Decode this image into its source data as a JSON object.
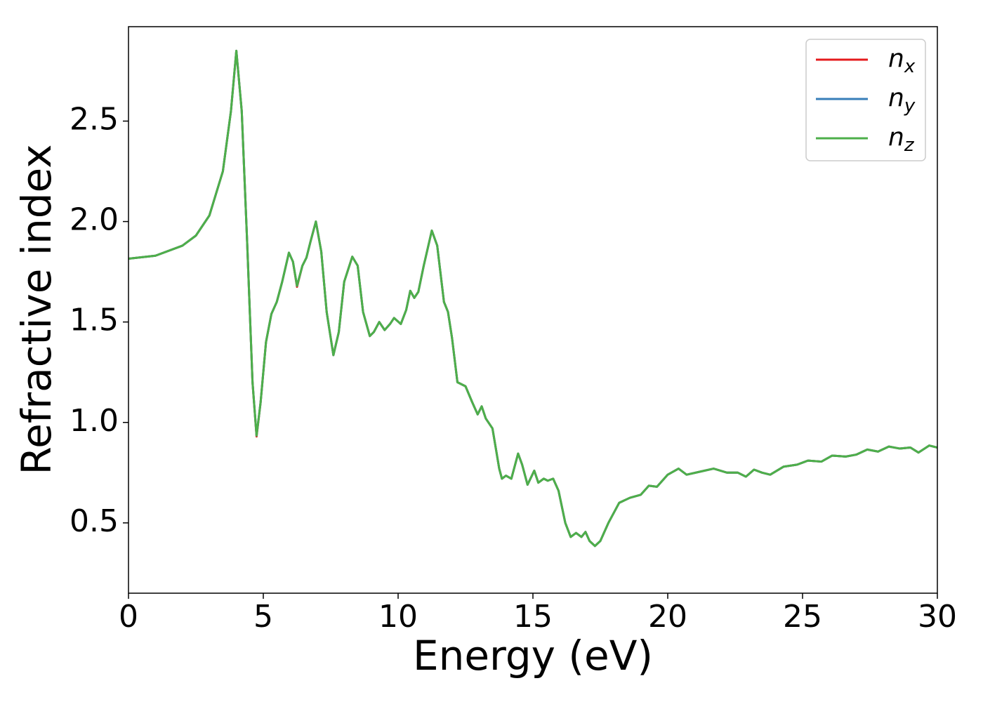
{
  "chart_data": {
    "type": "line",
    "xlabel": "Energy (eV)",
    "ylabel": "Refractive index",
    "x": [
      0,
      1,
      2,
      2.5,
      3,
      3.5,
      3.8,
      4.0,
      4.2,
      4.4,
      4.6,
      4.75,
      4.9,
      5.1,
      5.3,
      5.5,
      5.7,
      5.95,
      6.1,
      6.25,
      6.45,
      6.6,
      6.75,
      6.95,
      7.15,
      7.35,
      7.6,
      7.8,
      8.0,
      8.3,
      8.5,
      8.7,
      8.95,
      9.1,
      9.3,
      9.5,
      9.7,
      9.85,
      10.1,
      10.3,
      10.45,
      10.6,
      10.75,
      10.95,
      11.25,
      11.45,
      11.7,
      11.85,
      12.0,
      12.2,
      12.5,
      12.75,
      12.95,
      13.1,
      13.25,
      13.5,
      13.75,
      13.85,
      14.0,
      14.2,
      14.45,
      14.6,
      14.8,
      15.05,
      15.2,
      15.4,
      15.55,
      15.75,
      15.95,
      16.2,
      16.4,
      16.6,
      16.8,
      16.95,
      17.1,
      17.3,
      17.5,
      17.8,
      18.2,
      18.6,
      19.0,
      19.3,
      19.6,
      20.0,
      20.4,
      20.7,
      21.2,
      21.7,
      22.2,
      22.6,
      22.9,
      23.2,
      23.5,
      23.8,
      24.3,
      24.8,
      25.2,
      25.7,
      26.1,
      26.6,
      27.0,
      27.4,
      27.8,
      28.2,
      28.6,
      29.0,
      29.3,
      29.7,
      30.0
    ],
    "series": [
      {
        "name": "nx",
        "color": "#e41a1c",
        "values": [
          1.815,
          1.83,
          1.88,
          1.93,
          2.03,
          2.25,
          2.55,
          2.85,
          2.55,
          1.9,
          1.2,
          0.93,
          1.1,
          1.4,
          1.54,
          1.6,
          1.7,
          1.845,
          1.8,
          1.675,
          1.78,
          1.82,
          1.9,
          2.0,
          1.85,
          1.55,
          1.335,
          1.45,
          1.7,
          1.825,
          1.78,
          1.55,
          1.43,
          1.45,
          1.5,
          1.46,
          1.49,
          1.52,
          1.49,
          1.56,
          1.655,
          1.62,
          1.65,
          1.78,
          1.955,
          1.88,
          1.6,
          1.55,
          1.42,
          1.2,
          1.18,
          1.1,
          1.04,
          1.08,
          1.02,
          0.97,
          0.77,
          0.72,
          0.735,
          0.72,
          0.845,
          0.79,
          0.69,
          0.76,
          0.7,
          0.72,
          0.71,
          0.72,
          0.66,
          0.5,
          0.43,
          0.45,
          0.43,
          0.455,
          0.41,
          0.385,
          0.41,
          0.5,
          0.6,
          0.625,
          0.64,
          0.685,
          0.68,
          0.74,
          0.77,
          0.74,
          0.755,
          0.77,
          0.75,
          0.75,
          0.73,
          0.765,
          0.75,
          0.74,
          0.78,
          0.79,
          0.81,
          0.805,
          0.835,
          0.83,
          0.84,
          0.865,
          0.855,
          0.88,
          0.87,
          0.875,
          0.85,
          0.885,
          0.875
        ]
      },
      {
        "name": "ny",
        "color": "#377eb8",
        "values": [
          1.815,
          1.83,
          1.88,
          1.93,
          2.03,
          2.25,
          2.55,
          2.85,
          2.55,
          1.9,
          1.2,
          0.935,
          1.1,
          1.4,
          1.54,
          1.6,
          1.7,
          1.845,
          1.8,
          1.68,
          1.78,
          1.82,
          1.9,
          2.0,
          1.85,
          1.55,
          1.335,
          1.45,
          1.7,
          1.825,
          1.78,
          1.55,
          1.43,
          1.45,
          1.5,
          1.46,
          1.49,
          1.52,
          1.49,
          1.56,
          1.655,
          1.62,
          1.65,
          1.78,
          1.955,
          1.88,
          1.6,
          1.55,
          1.42,
          1.2,
          1.18,
          1.1,
          1.04,
          1.08,
          1.02,
          0.97,
          0.77,
          0.72,
          0.735,
          0.72,
          0.845,
          0.79,
          0.69,
          0.76,
          0.7,
          0.72,
          0.71,
          0.72,
          0.66,
          0.5,
          0.43,
          0.45,
          0.43,
          0.455,
          0.41,
          0.385,
          0.41,
          0.5,
          0.6,
          0.625,
          0.64,
          0.685,
          0.68,
          0.74,
          0.77,
          0.74,
          0.755,
          0.77,
          0.75,
          0.75,
          0.73,
          0.765,
          0.75,
          0.74,
          0.78,
          0.79,
          0.81,
          0.805,
          0.835,
          0.83,
          0.84,
          0.865,
          0.855,
          0.88,
          0.87,
          0.875,
          0.85,
          0.885,
          0.875
        ]
      },
      {
        "name": "nz",
        "color": "#4daf4a",
        "values": [
          1.815,
          1.83,
          1.88,
          1.93,
          2.03,
          2.25,
          2.55,
          2.85,
          2.55,
          1.9,
          1.2,
          0.935,
          1.1,
          1.4,
          1.54,
          1.6,
          1.7,
          1.845,
          1.8,
          1.68,
          1.78,
          1.82,
          1.9,
          2.0,
          1.85,
          1.55,
          1.335,
          1.45,
          1.7,
          1.825,
          1.78,
          1.55,
          1.43,
          1.45,
          1.5,
          1.46,
          1.49,
          1.52,
          1.49,
          1.56,
          1.655,
          1.62,
          1.65,
          1.78,
          1.955,
          1.88,
          1.6,
          1.55,
          1.42,
          1.2,
          1.18,
          1.1,
          1.04,
          1.08,
          1.02,
          0.97,
          0.77,
          0.72,
          0.735,
          0.72,
          0.845,
          0.79,
          0.69,
          0.76,
          0.7,
          0.72,
          0.71,
          0.72,
          0.66,
          0.5,
          0.43,
          0.45,
          0.43,
          0.455,
          0.41,
          0.385,
          0.41,
          0.5,
          0.6,
          0.625,
          0.64,
          0.685,
          0.68,
          0.74,
          0.77,
          0.74,
          0.755,
          0.77,
          0.75,
          0.75,
          0.73,
          0.765,
          0.75,
          0.74,
          0.78,
          0.79,
          0.81,
          0.805,
          0.835,
          0.83,
          0.84,
          0.865,
          0.855,
          0.88,
          0.87,
          0.875,
          0.85,
          0.885,
          0.875
        ]
      }
    ],
    "xlim": [
      0,
      30
    ],
    "xticks": [
      0,
      5,
      10,
      15,
      20,
      25,
      30
    ],
    "ylim": [
      0.15,
      2.97
    ],
    "yticks": [
      0.5,
      {
        "value": 1,
        "label": "1.0"
      },
      1.5,
      {
        "value": 2,
        "label": "2.0"
      },
      2.5
    ],
    "grid": false,
    "legend": "upper right"
  }
}
